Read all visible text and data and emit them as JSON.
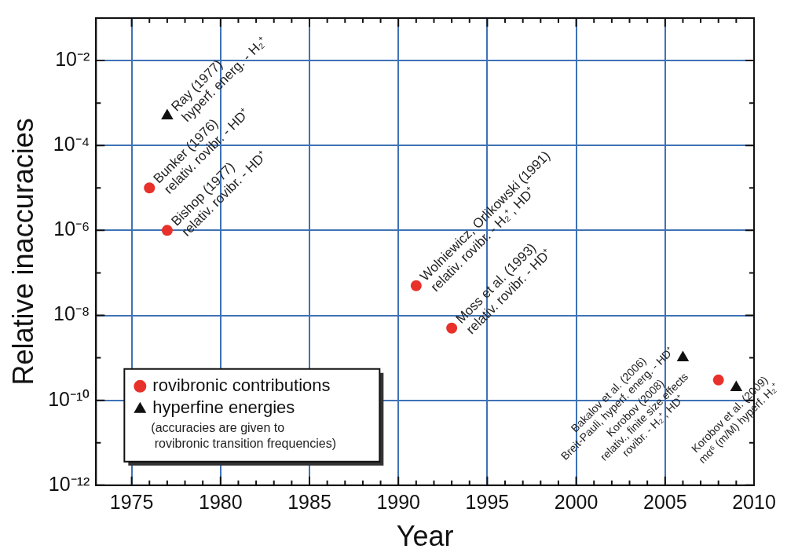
{
  "chart_data": {
    "type": "scatter",
    "xlabel": "Year",
    "ylabel": "Relative inaccuracies",
    "series": [
      {
        "name": "rovibronic contributions",
        "color": "#e8312a",
        "marker": "circle",
        "x": [
          1976,
          1977,
          1991,
          1993,
          2008
        ],
        "values": [
          1e-05,
          1e-06,
          5e-08,
          5e-09,
          3e-10
        ]
      },
      {
        "name": "hyperfine energies",
        "color": "#111111",
        "marker": "triangle",
        "x": [
          1977,
          2006,
          2009
        ],
        "values": [
          0.0005,
          1e-09,
          2e-10
        ]
      }
    ],
    "log": "y",
    "xlim": [
      1973,
      2010
    ],
    "ylim": [
      1e-12,
      0.1
    ],
    "xticks": [
      1975,
      {
        "value": 1976,
        "label": null
      },
      {
        "value": 1977,
        "label": null
      },
      {
        "value": 1978,
        "label": null
      },
      {
        "value": 1979,
        "label": null
      },
      1980,
      {
        "value": 1981,
        "label": null
      },
      {
        "value": 1982,
        "label": null
      },
      {
        "value": 1983,
        "label": null
      },
      {
        "value": 1984,
        "label": null
      },
      1985,
      {
        "value": 1986,
        "label": null
      },
      {
        "value": 1987,
        "label": null
      },
      {
        "value": 1988,
        "label": null
      },
      {
        "value": 1989,
        "label": null
      },
      1990,
      {
        "value": 1991,
        "label": null
      },
      {
        "value": 1992,
        "label": null
      },
      {
        "value": 1993,
        "label": null
      },
      {
        "value": 1994,
        "label": null
      },
      1995,
      {
        "value": 1996,
        "label": null
      },
      {
        "value": 1997,
        "label": null
      },
      {
        "value": 1998,
        "label": null
      },
      {
        "value": 1999,
        "label": null
      },
      2000,
      {
        "value": 2001,
        "label": null
      },
      {
        "value": 2002,
        "label": null
      },
      {
        "value": 2003,
        "label": null
      },
      {
        "value": 2004,
        "label": null
      },
      2005,
      {
        "value": 2006,
        "label": null
      },
      {
        "value": 2007,
        "label": null
      },
      {
        "value": 2008,
        "label": null
      },
      {
        "value": 2009,
        "label": null
      },
      2010
    ],
    "yticks": [
      {
        "value": 1e-12,
        "label": "10⁻¹²"
      },
      {
        "value": 1e-11,
        "label": null
      },
      {
        "value": 1e-10,
        "label": "10⁻¹⁰"
      },
      {
        "value": 1e-09,
        "label": null
      },
      {
        "value": 1e-08,
        "label": "10⁻⁸"
      },
      {
        "value": 1e-07,
        "label": null
      },
      {
        "value": 1e-06,
        "label": "10⁻⁶"
      },
      {
        "value": 1e-05,
        "label": null
      },
      {
        "value": 0.0001,
        "label": "10⁻⁴"
      },
      {
        "value": 0.001,
        "label": null
      },
      {
        "value": 0.01,
        "label": "10⁻²"
      },
      {
        "value": 0.1,
        "label": null
      }
    ],
    "grid": true,
    "legend": "bottom left",
    "annotations": [
      {
        "text": "Ray (1977)\nhyperf. energ. - H₂⁺",
        "x": 1977,
        "y": 0.0005
      },
      {
        "text": "Bunker (1976)\nrelativ. rovibr. - HD⁺",
        "x": 1976,
        "y": 1e-05
      },
      {
        "text": "Bishop (1977)\nrelativ. rovibr. - HD⁺",
        "x": 1977,
        "y": 1e-06
      },
      {
        "text": "Wolniewicz, Orlikowski (1991)\nrelativ. rovibr. - H₂⁺, HD⁺",
        "x": 1991,
        "y": 5e-08
      },
      {
        "text": "Moss et al. (1993)\nrelativ. rovibr. - HD⁺",
        "x": 1993,
        "y": 5e-09
      },
      {
        "text": "Bakalov et al. (2006)\nBreit-Pauli, hyperf. energ. - HD⁺",
        "x": 2006,
        "y": 1e-09
      },
      {
        "text": "Korobov (2008)\nrelativ., finite size effects\nrovibr. - H₂⁺, HD⁺",
        "x": 2008,
        "y": 3e-10
      },
      {
        "text": "Korobov et al. (2009)\nmα⁶ (m/M) hyperf. H₂⁺",
        "x": 2009,
        "y": 2e-10
      },
      "(accuracies are given to\n rovibronic transition frequencies)"
    ]
  }
}
